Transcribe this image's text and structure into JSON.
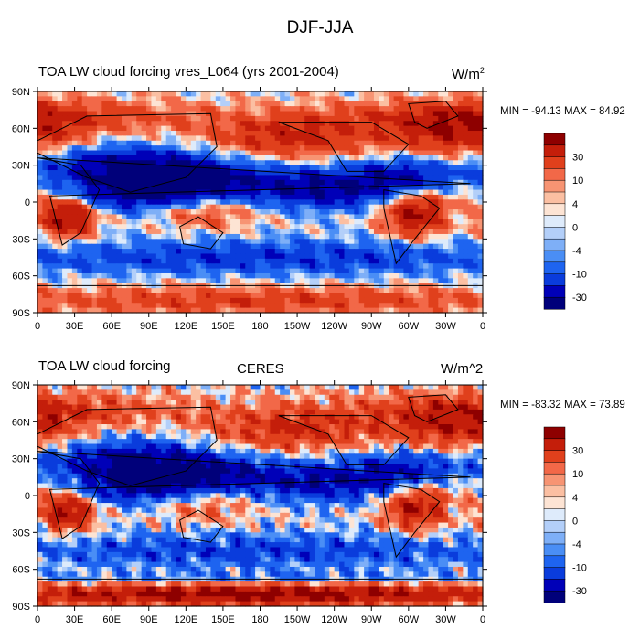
{
  "main_title": "DJF-JJA",
  "colors": [
    "#00007a",
    "#0000b8",
    "#0a3cdc",
    "#1e64f0",
    "#4a8ef5",
    "#7eaff7",
    "#b3cff9",
    "#deebfb",
    "#fde4d4",
    "#fbbfa2",
    "#f79473",
    "#f26848",
    "#e0401c",
    "#c41e0a",
    "#8e0000"
  ],
  "chart_data": [
    {
      "type": "heatmap",
      "title": "TOA LW cloud forcing vres_L064 (yrs 2001-2004)",
      "center_title": "",
      "units": "W/m",
      "units_sup": "2",
      "minmax": "MIN = -94.13 MAX =  84.92",
      "min": -94.13,
      "max": 84.92,
      "x_ticks": [
        "0",
        "30E",
        "60E",
        "90E",
        "120E",
        "150E",
        "180",
        "150W",
        "120W",
        "90W",
        "60W",
        "30W",
        "0"
      ],
      "y_ticks": [
        "90N",
        "60N",
        "30N",
        "0",
        "30S",
        "60S",
        "90S"
      ],
      "colorbar_levels": [
        "-45",
        "-30",
        "-20",
        "-10",
        "-6",
        "-4",
        "-2",
        "0",
        "2",
        "4",
        "6",
        "10",
        "20",
        "30",
        "45"
      ],
      "colorbar_labels": [
        "30",
        "10",
        "4",
        "0",
        "-4",
        "-10",
        "-30"
      ],
      "field": "model"
    },
    {
      "type": "heatmap",
      "title": "TOA LW cloud forcing",
      "center_title": "CERES",
      "units": "W/m^2",
      "units_sup": "",
      "minmax": "MIN = -83.32 MAX =  73.89",
      "min": -83.32,
      "max": 73.89,
      "x_ticks": [
        "0",
        "30E",
        "60E",
        "90E",
        "120E",
        "150E",
        "180",
        "150W",
        "120W",
        "90W",
        "60W",
        "30W",
        "0"
      ],
      "y_ticks": [
        "90N",
        "60N",
        "30N",
        "0",
        "30S",
        "60S",
        "90S"
      ],
      "colorbar_levels": [
        "-45",
        "-30",
        "-20",
        "-10",
        "-6",
        "-4",
        "-2",
        "0",
        "2",
        "4",
        "6",
        "10",
        "20",
        "30",
        "45"
      ],
      "colorbar_labels": [
        "30",
        "10",
        "4",
        "0",
        "-4",
        "-10",
        "-30"
      ],
      "field": "obs"
    }
  ]
}
